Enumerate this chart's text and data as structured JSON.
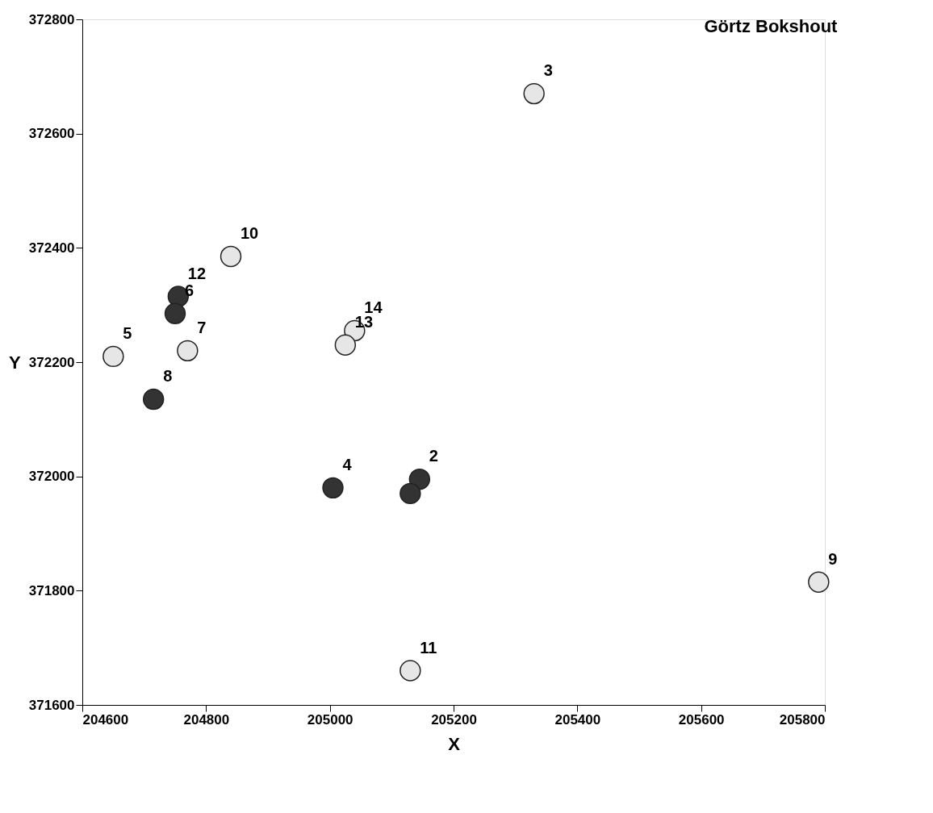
{
  "chart_data": {
    "type": "scatter",
    "title": "Görtz Bokshout",
    "xlabel": "X",
    "ylabel": "Y",
    "xlim": [
      204600,
      205800
    ],
    "xticks": [
      204600,
      204800,
      205000,
      205200,
      205400,
      205600,
      205800
    ],
    "ylim": [
      371600,
      372800
    ],
    "yticks": [
      371600,
      371800,
      372000,
      372200,
      372400,
      372600,
      372800
    ],
    "grid": false,
    "series": [
      {
        "color": "#e6e6e6",
        "x": [
          205330,
          204840,
          204650,
          204770,
          205040,
          205025,
          205790,
          205130
        ],
        "values": [
          372670,
          372385,
          372210,
          372220,
          372255,
          372230,
          371815,
          371660
        ]
      },
      {
        "color": "#333333",
        "x": [
          204755,
          204750,
          204715,
          205005,
          205145,
          205130
        ],
        "values": [
          372315,
          372285,
          372135,
          371980,
          371995,
          371970
        ]
      }
    ],
    "annotations": [
      {
        "text": "3",
        "x": 205330,
        "y": 372670
      },
      {
        "text": "10",
        "x": 204840,
        "y": 372385
      },
      {
        "text": "5",
        "x": 204650,
        "y": 372210
      },
      {
        "text": "7",
        "x": 204770,
        "y": 372220
      },
      {
        "text": "14",
        "x": 205040,
        "y": 372255
      },
      {
        "text": "13",
        "x": 205025,
        "y": 372230
      },
      {
        "text": "9",
        "x": 205790,
        "y": 371815
      },
      {
        "text": "11",
        "x": 205130,
        "y": 371660
      },
      {
        "text": "12",
        "x": 204755,
        "y": 372315
      },
      {
        "text": "6",
        "x": 204750,
        "y": 372285
      },
      {
        "text": "8",
        "x": 204715,
        "y": 372135
      },
      {
        "text": "4",
        "x": 205005,
        "y": 371980
      },
      {
        "text": "2",
        "x": 205145,
        "y": 371995
      }
    ]
  }
}
